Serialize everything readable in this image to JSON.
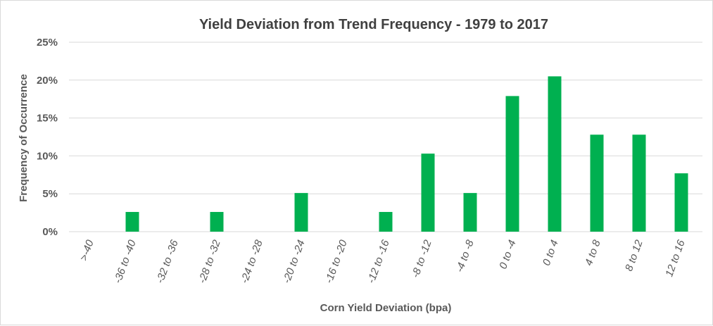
{
  "chart_data": {
    "type": "bar",
    "title": "Yield Deviation from Trend Frequency - 1979 to 2017",
    "xlabel": "Corn Yield Deviation (bpa)",
    "ylabel": "Frequency of Occurrence",
    "categories": [
      ">-40",
      "-36 to -40",
      "-32 to -36",
      "-28 to -32",
      "-24 to -28",
      "-20 to -24",
      "-16 to -20",
      "-12 to -16",
      "-8 to -12",
      "-4 to -8",
      "0 to -4",
      "0 to 4",
      "4 to 8",
      "8 to 12",
      "12 to 16"
    ],
    "values": [
      0,
      2.6,
      0,
      2.6,
      0,
      5.1,
      0,
      2.6,
      10.3,
      5.1,
      17.9,
      20.5,
      12.8,
      12.8,
      7.7
    ],
    "ylim": [
      0,
      25
    ],
    "yticks": [
      "0%",
      "5%",
      "10%",
      "15%",
      "20%",
      "25%"
    ],
    "ytick_values": [
      0,
      5,
      10,
      15,
      20,
      25
    ],
    "grid": true,
    "bar_color": "#00b050"
  }
}
